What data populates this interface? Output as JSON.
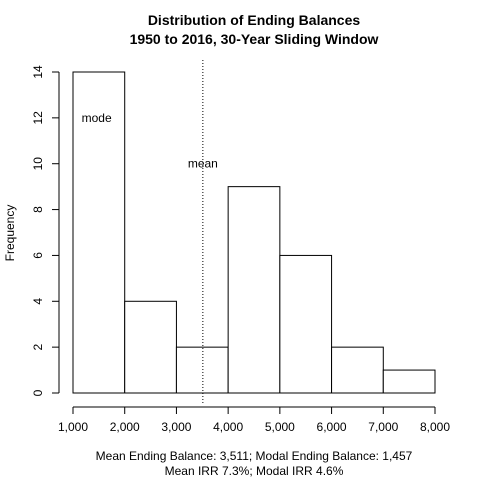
{
  "chart_data": {
    "type": "bar",
    "title_lines": [
      "Distribution of Ending Balances",
      "1950 to 2016, 30-Year Sliding Window"
    ],
    "xlabel": "",
    "ylabel": "Frequency",
    "x_ticks": [
      1000,
      2000,
      3000,
      4000,
      5000,
      6000,
      7000,
      8000
    ],
    "x_tick_labels": [
      "1,000",
      "2,000",
      "3,000",
      "4,000",
      "5,000",
      "6,000",
      "7,000",
      "8,000"
    ],
    "y_ticks": [
      0,
      2,
      4,
      6,
      8,
      10,
      12,
      14
    ],
    "y_tick_labels": [
      "0",
      "2",
      "4",
      "6",
      "8",
      "10",
      "12",
      "14"
    ],
    "xlim": [
      1000,
      8000
    ],
    "ylim": [
      0,
      14
    ],
    "bins": [
      {
        "from": 1000,
        "to": 2000,
        "value": 14
      },
      {
        "from": 2000,
        "to": 3000,
        "value": 4
      },
      {
        "from": 3000,
        "to": 4000,
        "value": 2
      },
      {
        "from": 4000,
        "to": 5000,
        "value": 9
      },
      {
        "from": 5000,
        "to": 6000,
        "value": 6
      },
      {
        "from": 6000,
        "to": 7000,
        "value": 2
      },
      {
        "from": 7000,
        "to": 8000,
        "value": 1
      }
    ],
    "mean_line": {
      "x": 3511,
      "style": "dotted"
    },
    "annotations": [
      {
        "text": "mode",
        "x": 1457,
        "y": 12
      },
      {
        "text": "mean",
        "x": 3511,
        "y": 10
      }
    ],
    "subtitle_lines": [
      "Mean Ending Balance: 3,511; Modal Ending Balance: 1,457",
      "Mean IRR 7.3%; Modal IRR 4.6%"
    ],
    "grid": false
  }
}
